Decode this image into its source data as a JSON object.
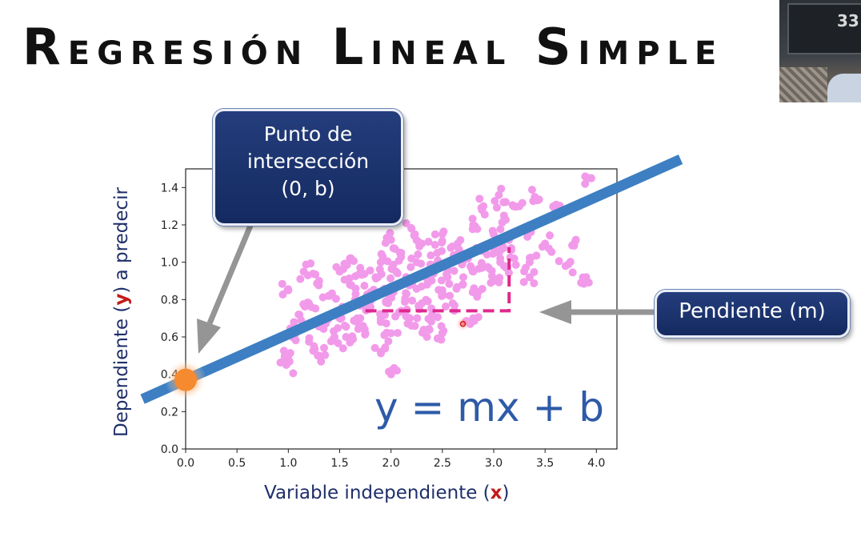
{
  "slide": {
    "title": {
      "word1": {
        "cap": "R",
        "rest": "EGRESIÓN"
      },
      "word2": {
        "cap": "L",
        "rest": "INEAL"
      },
      "word3": {
        "cap": "S",
        "rest": "IMPLE"
      }
    },
    "callout_intercept": {
      "line1": "Punto de",
      "line2": "intersección",
      "line3": "(0, b)"
    },
    "callout_slope": "Pendiente (m)",
    "equation": "y = mx + b",
    "xlabel": {
      "pre": "Variable independiente (",
      "var": "x",
      "post": ")"
    },
    "ylabel": {
      "pre": "Dependiente (",
      "var": "y",
      "post": ") a predecir"
    },
    "webcam_number": "33"
  },
  "colors": {
    "scatter": "#f29aea",
    "regression_line": "#3d7fc2",
    "slope_marker": "#e0288e",
    "intercept_point": "#f58a2e",
    "arrow": "#959595",
    "callout_bg": "#1b3370"
  },
  "chart_data": {
    "type": "scatter",
    "xlim": [
      0.0,
      4.2
    ],
    "ylim": [
      0.0,
      1.5
    ],
    "xticks": [
      "0.0",
      "0.5",
      "1.0",
      "1.5",
      "2.0",
      "2.5",
      "3.0",
      "3.5",
      "4.0"
    ],
    "yticks": [
      "0.0",
      "0.2",
      "0.4",
      "0.6",
      "0.8",
      "1.0",
      "1.2",
      "1.4"
    ],
    "regression_line": {
      "intercept": 0.37,
      "slope": 0.245
    },
    "slope_marker": {
      "x_start": 1.75,
      "x_end": 3.15,
      "y_start": 0.74,
      "y_end": 1.08
    },
    "intercept_point": {
      "x": 0.0,
      "y": 0.37
    },
    "highlight_point": {
      "x": 2.7,
      "y": 0.67
    },
    "points": [
      [
        1.0,
        0.85
      ],
      [
        1.05,
        0.62
      ],
      [
        1.1,
        0.72
      ],
      [
        1.2,
        0.78
      ],
      [
        1.25,
        0.55
      ],
      [
        1.3,
        0.9
      ],
      [
        1.35,
        0.68
      ],
      [
        1.4,
        0.82
      ],
      [
        1.45,
        0.6
      ],
      [
        1.5,
        0.95
      ],
      [
        1.5,
        0.74
      ],
      [
        1.55,
        0.66
      ],
      [
        1.6,
        0.88
      ],
      [
        1.6,
        0.57
      ],
      [
        1.65,
        0.8
      ],
      [
        1.7,
        0.7
      ],
      [
        1.7,
        0.97
      ],
      [
        1.75,
        0.62
      ],
      [
        1.8,
        0.84
      ],
      [
        1.8,
        0.76
      ],
      [
        1.85,
        0.92
      ],
      [
        1.9,
        0.68
      ],
      [
        1.9,
        1.0
      ],
      [
        1.95,
        0.79
      ],
      [
        2.0,
        0.87
      ],
      [
        2.0,
        0.62
      ],
      [
        2.05,
        0.95
      ],
      [
        2.1,
        0.74
      ],
      [
        2.1,
        1.05
      ],
      [
        2.15,
        0.83
      ],
      [
        2.2,
        0.9
      ],
      [
        2.2,
        0.66
      ],
      [
        2.25,
        1.0
      ],
      [
        2.3,
        0.78
      ],
      [
        2.3,
        1.1
      ],
      [
        2.35,
        0.88
      ],
      [
        2.4,
        0.95
      ],
      [
        2.4,
        0.72
      ],
      [
        2.45,
        1.05
      ],
      [
        2.5,
        0.85
      ],
      [
        2.5,
        1.15
      ],
      [
        2.55,
        0.92
      ],
      [
        2.6,
        1.0
      ],
      [
        2.6,
        0.78
      ],
      [
        2.65,
        1.1
      ],
      [
        2.7,
        0.88
      ],
      [
        2.75,
        1.02
      ],
      [
        2.8,
        0.95
      ],
      [
        2.8,
        1.2
      ],
      [
        2.85,
        0.84
      ],
      [
        2.9,
        1.08
      ],
      [
        2.95,
        0.97
      ],
      [
        3.0,
        1.15
      ],
      [
        3.0,
        0.9
      ],
      [
        3.05,
        1.05
      ],
      [
        3.1,
        1.25
      ],
      [
        3.1,
        0.98
      ],
      [
        3.15,
        1.12
      ],
      [
        3.2,
        1.02
      ],
      [
        3.25,
        1.3
      ],
      [
        3.3,
        1.18
      ],
      [
        3.35,
        1.0
      ],
      [
        3.4,
        1.35
      ],
      [
        3.5,
        1.1
      ],
      [
        3.6,
        1.28
      ],
      [
        3.7,
        0.98
      ],
      [
        3.8,
        1.12
      ],
      [
        3.9,
        0.92
      ],
      [
        3.95,
        1.45
      ],
      [
        1.3,
        0.5
      ],
      [
        1.0,
        0.5
      ],
      [
        2.0,
        0.4
      ],
      [
        0.98,
        0.45
      ],
      [
        1.15,
        0.95
      ],
      [
        3.35,
        0.92
      ],
      [
        2.2,
        1.18
      ],
      [
        2.0,
        1.12
      ],
      [
        1.6,
        1.02
      ],
      [
        2.9,
        1.3
      ],
      [
        3.05,
        1.36
      ],
      [
        2.5,
        0.62
      ],
      [
        1.9,
        0.52
      ],
      [
        2.35,
        0.6
      ],
      [
        2.8,
        0.7
      ]
    ]
  }
}
